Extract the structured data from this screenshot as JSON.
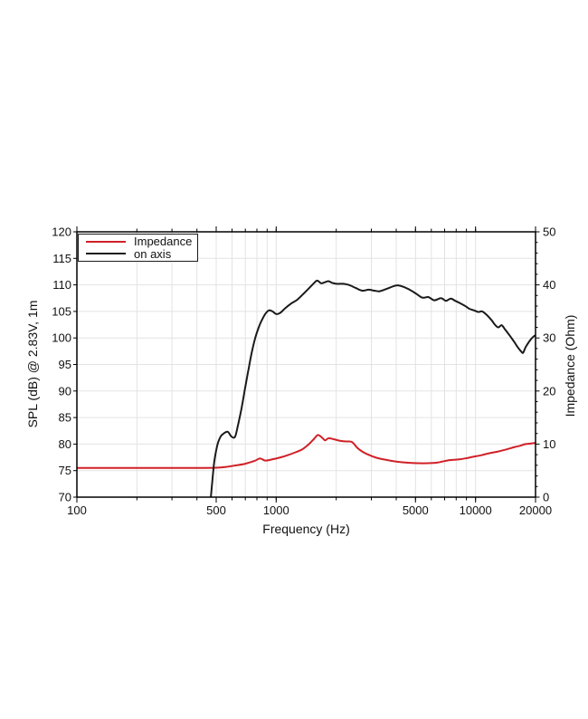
{
  "page": {
    "background": "#ffffff"
  },
  "chart_data": {
    "type": "line",
    "title": "",
    "xlabel": "Frequency (Hz)",
    "x_scale": "log",
    "x_range": [
      100,
      20000
    ],
    "x_tick_values": [
      100,
      500,
      1000,
      5000,
      10000,
      20000
    ],
    "x_tick_labels": [
      "100",
      "500",
      "1000",
      "5000",
      "10000",
      "20000"
    ],
    "grid": true,
    "colors": {
      "grid": "#e3e3e3",
      "spine": "#000000",
      "text": "#111111",
      "impedance": "#d02027",
      "on_axis": "#1a1a1a"
    },
    "axes": {
      "left": {
        "label": "SPL (dB) @ 2.83V, 1m",
        "range": [
          70,
          120
        ],
        "tick_step": 5,
        "tick_labels": [
          "70",
          "75",
          "80",
          "85",
          "90",
          "95",
          "100",
          "105",
          "110",
          "115",
          "120"
        ]
      },
      "right": {
        "label": "Impedance (Ohm)",
        "range": [
          0,
          50
        ],
        "tick_step": 10,
        "minor_tick_step": 2,
        "tick_labels": [
          "0",
          "10",
          "20",
          "30",
          "40",
          "50"
        ]
      }
    },
    "legend": {
      "position": "top-left",
      "entries": [
        {
          "label": "Impedance",
          "color": "#d02027"
        },
        {
          "label": "on axis",
          "color": "#1a1a1a"
        }
      ]
    },
    "series": [
      {
        "name": "Impedance",
        "axis": "right",
        "unit": "Ohm",
        "color": "#d02027",
        "points": [
          [
            100,
            5.5
          ],
          [
            150,
            5.5
          ],
          [
            200,
            5.5
          ],
          [
            300,
            5.5
          ],
          [
            400,
            5.5
          ],
          [
            500,
            5.55
          ],
          [
            560,
            5.7
          ],
          [
            620,
            5.95
          ],
          [
            700,
            6.3
          ],
          [
            780,
            6.85
          ],
          [
            830,
            7.3
          ],
          [
            880,
            6.9
          ],
          [
            950,
            7.1
          ],
          [
            1050,
            7.5
          ],
          [
            1150,
            7.95
          ],
          [
            1250,
            8.45
          ],
          [
            1350,
            9.0
          ],
          [
            1450,
            9.9
          ],
          [
            1550,
            11.0
          ],
          [
            1620,
            11.7
          ],
          [
            1700,
            11.2
          ],
          [
            1760,
            10.7
          ],
          [
            1830,
            11.1
          ],
          [
            1950,
            10.9
          ],
          [
            2100,
            10.6
          ],
          [
            2250,
            10.5
          ],
          [
            2400,
            10.4
          ],
          [
            2550,
            9.3
          ],
          [
            2700,
            8.6
          ],
          [
            2900,
            8.0
          ],
          [
            3200,
            7.4
          ],
          [
            3600,
            7.0
          ],
          [
            4000,
            6.7
          ],
          [
            4500,
            6.5
          ],
          [
            5100,
            6.4
          ],
          [
            5800,
            6.4
          ],
          [
            6400,
            6.5
          ],
          [
            7000,
            6.8
          ],
          [
            7500,
            7.0
          ],
          [
            8200,
            7.1
          ],
          [
            8900,
            7.3
          ],
          [
            9700,
            7.6
          ],
          [
            10700,
            7.9
          ],
          [
            11800,
            8.3
          ],
          [
            13000,
            8.6
          ],
          [
            14300,
            9.0
          ],
          [
            15600,
            9.4
          ],
          [
            16800,
            9.7
          ],
          [
            17800,
            10.0
          ],
          [
            19000,
            10.1
          ],
          [
            20000,
            10.2
          ]
        ]
      },
      {
        "name": "on axis",
        "axis": "left",
        "unit": "dB",
        "color": "#1a1a1a",
        "points": [
          [
            470,
            70
          ],
          [
            478,
            73
          ],
          [
            487,
            76.2
          ],
          [
            497,
            78.3
          ],
          [
            510,
            80.2
          ],
          [
            528,
            81.5
          ],
          [
            550,
            82.1
          ],
          [
            572,
            82.3
          ],
          [
            597,
            81.4
          ],
          [
            622,
            81.4
          ],
          [
            645,
            83.8
          ],
          [
            672,
            87
          ],
          [
            700,
            90.8
          ],
          [
            728,
            94.3
          ],
          [
            756,
            97.5
          ],
          [
            786,
            100.1
          ],
          [
            815,
            101.9
          ],
          [
            848,
            103.4
          ],
          [
            885,
            104.6
          ],
          [
            920,
            105.2
          ],
          [
            958,
            105.0
          ],
          [
            1000,
            104.5
          ],
          [
            1045,
            104.7
          ],
          [
            1110,
            105.6
          ],
          [
            1190,
            106.5
          ],
          [
            1275,
            107.2
          ],
          [
            1360,
            108.2
          ],
          [
            1445,
            109.2
          ],
          [
            1535,
            110.2
          ],
          [
            1605,
            110.8
          ],
          [
            1680,
            110.3
          ],
          [
            1755,
            110.5
          ],
          [
            1825,
            110.7
          ],
          [
            1905,
            110.4
          ],
          [
            2010,
            110.2
          ],
          [
            2160,
            110.2
          ],
          [
            2310,
            110.0
          ],
          [
            2510,
            109.4
          ],
          [
            2710,
            108.9
          ],
          [
            2910,
            109.1
          ],
          [
            3110,
            108.9
          ],
          [
            3310,
            108.8
          ],
          [
            3610,
            109.3
          ],
          [
            3910,
            109.8
          ],
          [
            4110,
            109.9
          ],
          [
            4310,
            109.7
          ],
          [
            4610,
            109.2
          ],
          [
            5010,
            108.4
          ],
          [
            5410,
            107.6
          ],
          [
            5810,
            107.7
          ],
          [
            6210,
            107.1
          ],
          [
            6710,
            107.5
          ],
          [
            7110,
            107.0
          ],
          [
            7510,
            107.4
          ],
          [
            7910,
            107.0
          ],
          [
            8310,
            106.6
          ],
          [
            8810,
            106.1
          ],
          [
            9310,
            105.5
          ],
          [
            9810,
            105.2
          ],
          [
            10310,
            104.9
          ],
          [
            10810,
            105.0
          ],
          [
            11410,
            104.3
          ],
          [
            12010,
            103.4
          ],
          [
            12510,
            102.5
          ],
          [
            13010,
            102.0
          ],
          [
            13510,
            102.4
          ],
          [
            14010,
            101.7
          ],
          [
            14810,
            100.5
          ],
          [
            15610,
            99.3
          ],
          [
            16310,
            98.2
          ],
          [
            16910,
            97.5
          ],
          [
            17310,
            97.2
          ],
          [
            17810,
            98.2
          ],
          [
            18410,
            99.1
          ],
          [
            19010,
            99.8
          ],
          [
            19610,
            100.3
          ],
          [
            20000,
            100.5
          ]
        ]
      }
    ]
  }
}
